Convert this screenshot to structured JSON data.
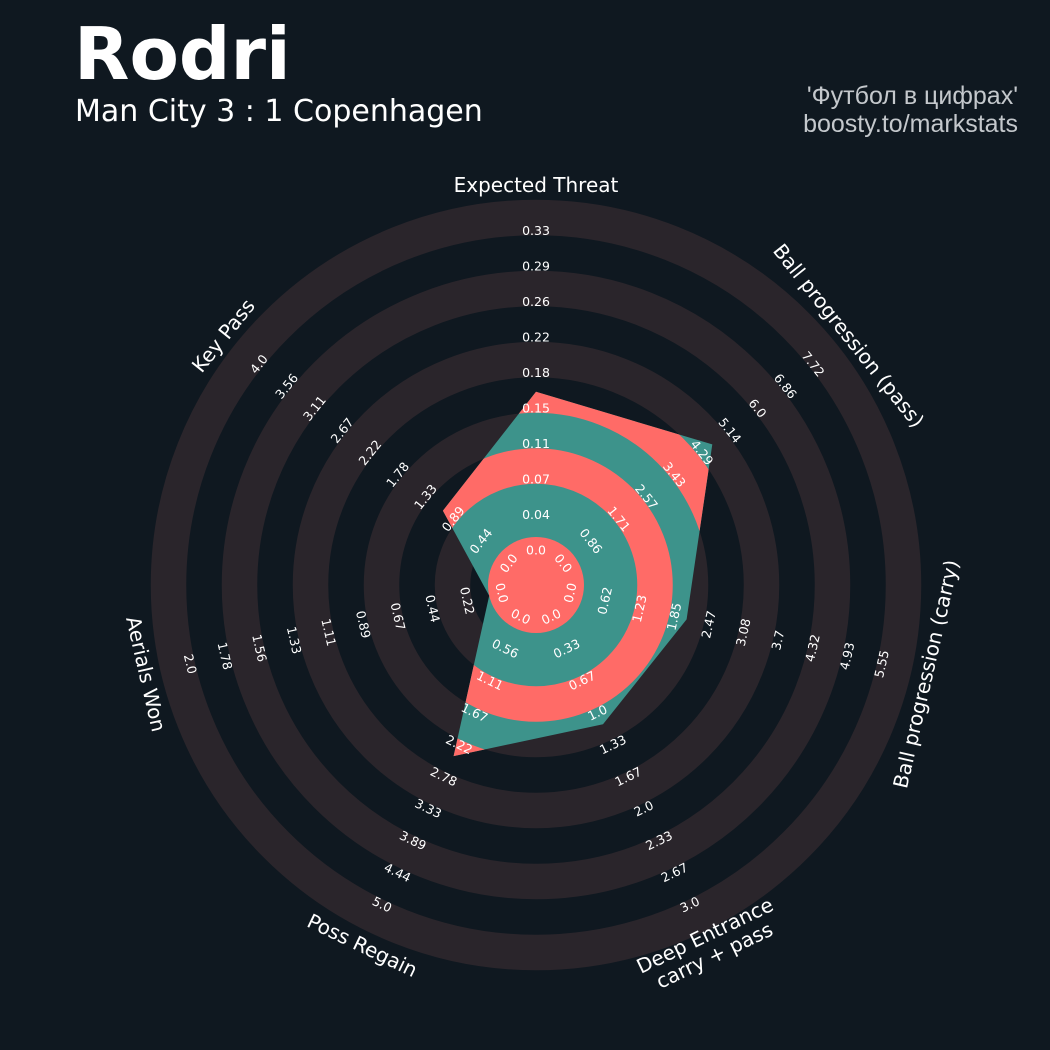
{
  "header": {
    "title": "Rodri",
    "subtitle": "Man City 3 : 1 Copenhagen",
    "credit_line1": "'Футбол в цифрах'",
    "credit_line2": "boosty.to/markstats"
  },
  "colors": {
    "background": "#0f1820",
    "ring_band": "#2a252b",
    "player_fill": "#3d938b",
    "band_overlay": "#ff6b67",
    "text": "#ffffff",
    "credit_text": "#c4c8cc"
  },
  "chart_data": {
    "type": "radar",
    "title": "Rodri",
    "subtitle": "Man City 3 : 1 Copenhagen",
    "rings": 5,
    "grid": true,
    "legend": "none",
    "axes": [
      {
        "label": "Expected Threat",
        "ticks": [
          "0.0",
          "0.04",
          "0.07",
          "0.11",
          "0.15",
          "0.18",
          "0.22",
          "0.26",
          "0.29",
          "0.33"
        ],
        "min": 0.0,
        "max": 0.33,
        "value": 0.15
      },
      {
        "label": "Ball progression (pass)",
        "ticks": [
          "0.0",
          "0.86",
          "1.71",
          "2.57",
          "3.43",
          "4.29",
          "5.14",
          "6.0",
          "6.86",
          "7.72"
        ],
        "min": 0.0,
        "max": 7.72,
        "value": 4.29
      },
      {
        "label": "Ball progression (carry)",
        "ticks": [
          "0.0",
          "0.62",
          "1.23",
          "1.85",
          "2.47",
          "3.08",
          "3.7",
          "4.32",
          "4.93",
          "5.55"
        ],
        "min": 0.0,
        "max": 5.55,
        "value": 1.85
      },
      {
        "label": "Deep Entrance\ncarry + pass",
        "ticks": [
          "0.0",
          "0.33",
          "0.67",
          "1.0",
          "1.33",
          "1.67",
          "2.0",
          "2.33",
          "2.67",
          "3.0"
        ],
        "min": 0.0,
        "max": 3.0,
        "value": 1.0
      },
      {
        "label": "Poss Regain",
        "ticks": [
          "0.0",
          "0.56",
          "1.11",
          "1.67",
          "2.22",
          "2.78",
          "3.33",
          "3.89",
          "4.44",
          "5.0"
        ],
        "min": 0.0,
        "max": 5.0,
        "value": 2.22
      },
      {
        "label": "Aerials Won",
        "ticks": [
          "0.0",
          "0.22",
          "0.44",
          "0.67",
          "0.89",
          "1.11",
          "1.33",
          "1.56",
          "1.78",
          "2.0"
        ],
        "min": 0.0,
        "max": 2.0,
        "value": 0.0
      },
      {
        "label": "Key Pass",
        "ticks": [
          "0.0",
          "0.44",
          "0.89",
          "1.33",
          "1.78",
          "2.22",
          "2.67",
          "3.11",
          "3.56",
          "4.0"
        ],
        "min": 0.0,
        "max": 4.0,
        "value": 0.89
      }
    ]
  }
}
